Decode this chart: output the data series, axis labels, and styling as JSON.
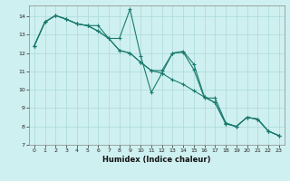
{
  "xlabel": "Humidex (Indice chaleur)",
  "background_color": "#cff0f0",
  "grid_color": "#aad8d8",
  "line_color": "#1a7a6e",
  "xlim": [
    -0.5,
    23.5
  ],
  "ylim": [
    7,
    14.6
  ],
  "yticks": [
    7,
    8,
    9,
    10,
    11,
    12,
    13,
    14
  ],
  "xticks": [
    0,
    1,
    2,
    3,
    4,
    5,
    6,
    7,
    8,
    9,
    10,
    11,
    12,
    13,
    14,
    15,
    16,
    17,
    18,
    19,
    20,
    21,
    22,
    23
  ],
  "series": [
    [
      12.4,
      13.7,
      14.05,
      13.85,
      13.6,
      13.5,
      13.2,
      12.8,
      12.15,
      12.0,
      11.5,
      11.05,
      10.9,
      10.55,
      10.3,
      9.95,
      9.6,
      9.3,
      8.15,
      8.0,
      8.5,
      8.4,
      7.75,
      7.5
    ],
    [
      12.4,
      13.7,
      14.05,
      13.85,
      13.6,
      13.5,
      13.2,
      12.8,
      12.8,
      14.4,
      11.85,
      9.85,
      10.9,
      12.0,
      12.1,
      11.4,
      9.6,
      9.3,
      8.15,
      8.0,
      8.5,
      8.4,
      7.75,
      7.5
    ],
    [
      12.4,
      13.7,
      14.05,
      13.85,
      13.6,
      13.5,
      13.5,
      12.8,
      12.15,
      12.0,
      11.5,
      11.05,
      11.05,
      12.0,
      12.05,
      11.1,
      9.55,
      9.55,
      8.2,
      8.0,
      8.5,
      8.4,
      7.75,
      7.5
    ]
  ]
}
